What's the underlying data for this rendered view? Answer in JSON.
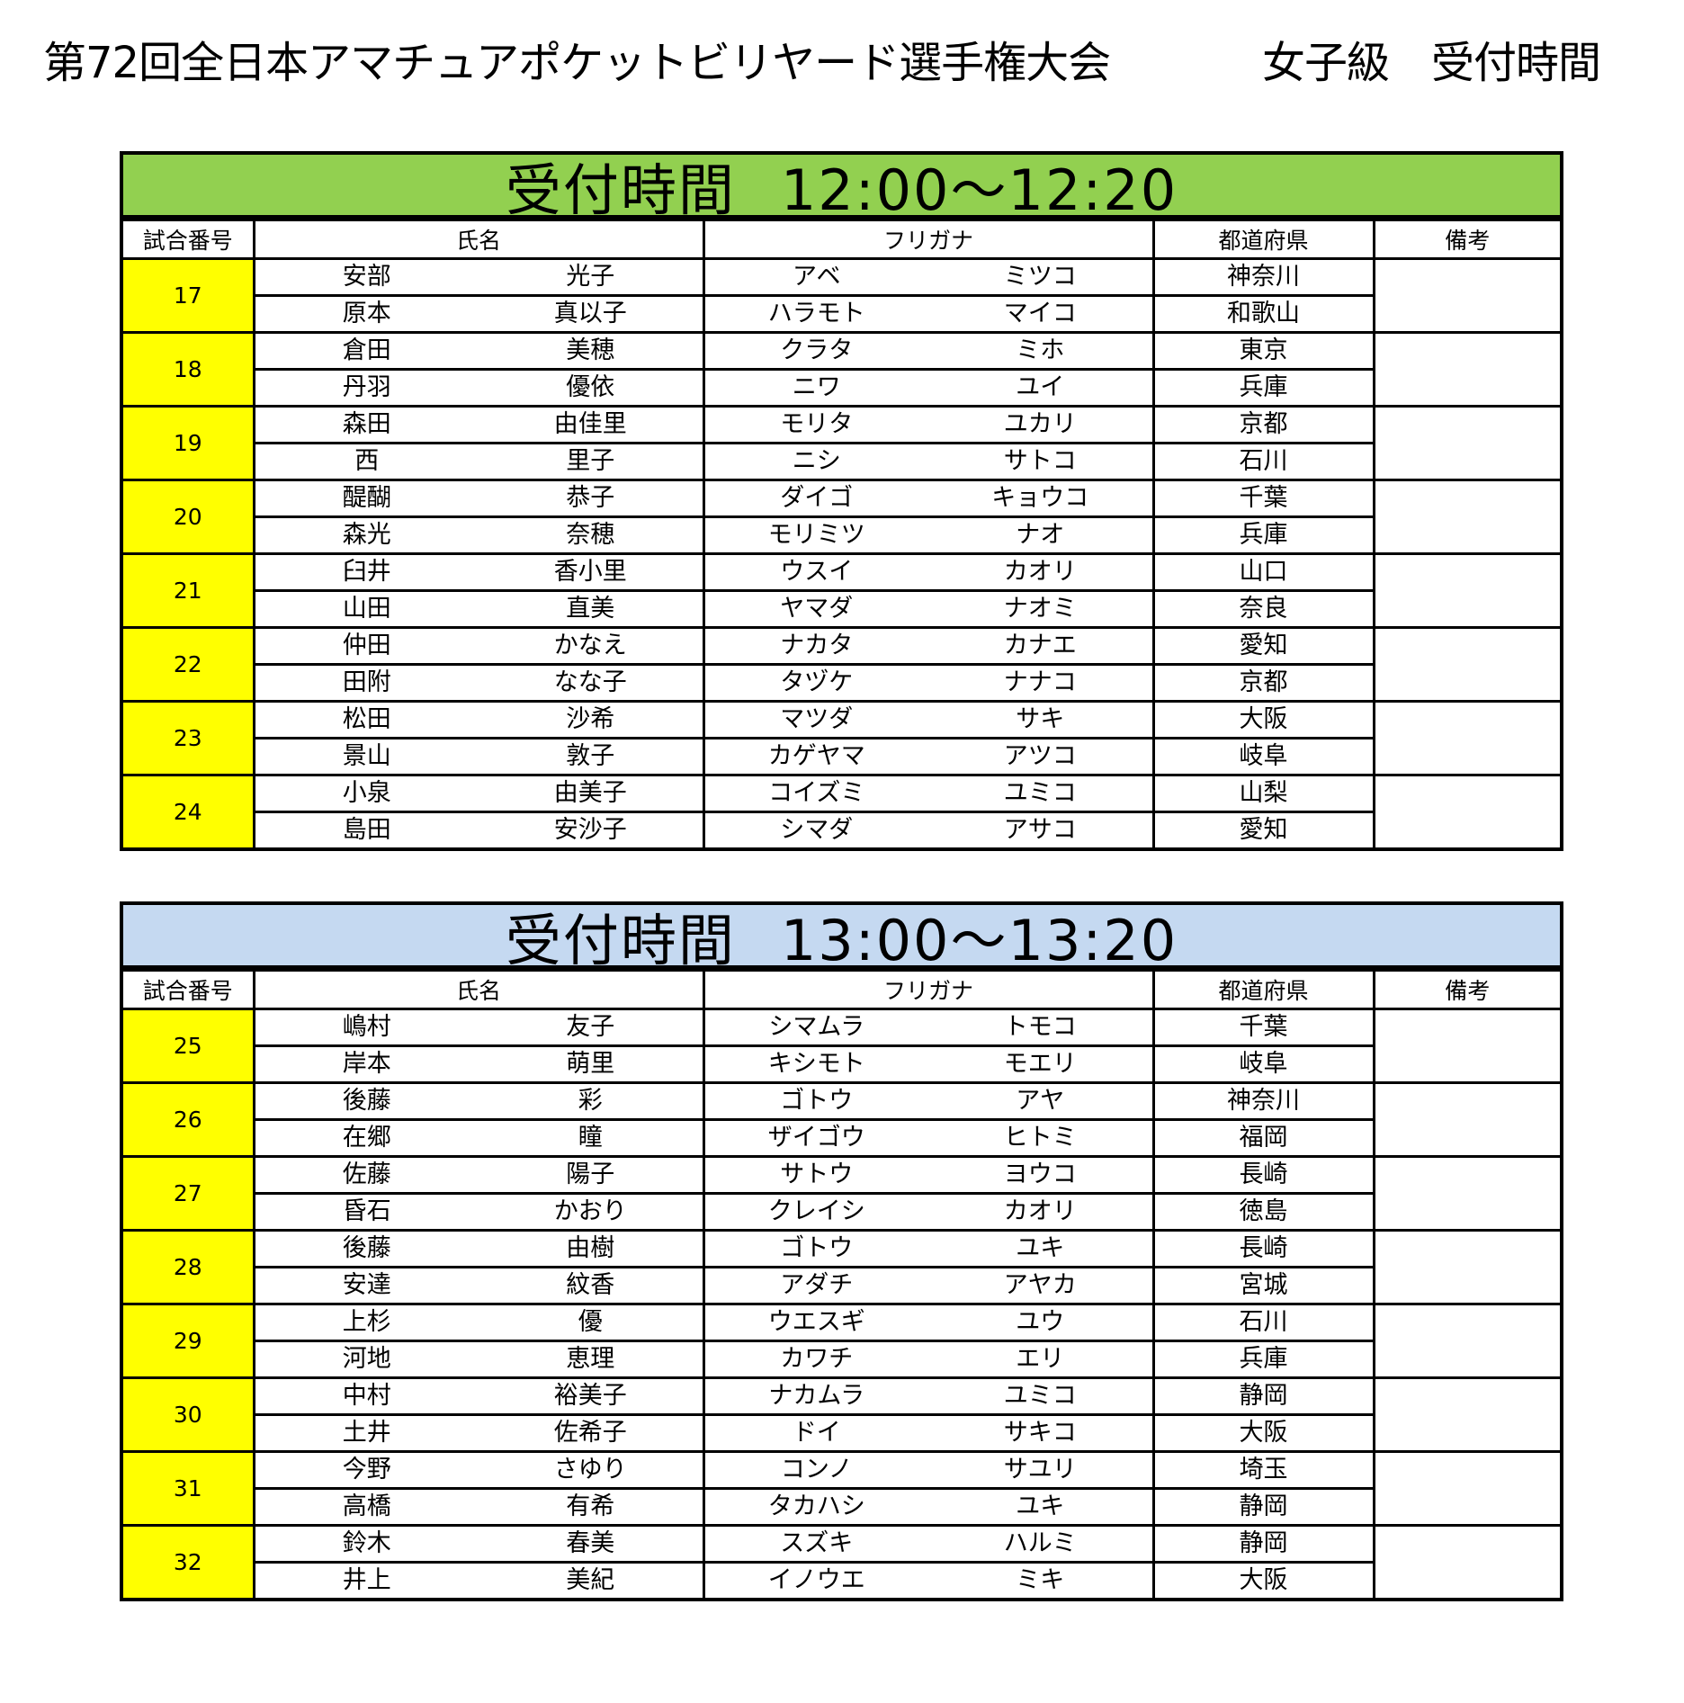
{
  "title": {
    "main": "第72回全日本アマチュアポケットビリヤード選手権大会",
    "sub": "女子級　受付時間"
  },
  "colors": {
    "band1": "#92d050",
    "band2": "#c5d9f1",
    "match_cell": "#ffff00"
  },
  "headers": {
    "match": "試合番号",
    "name": "氏名",
    "kana": "フリガナ",
    "pref": "都道府県",
    "note": "備考"
  },
  "sections": [
    {
      "label": "受付時間",
      "time": "12:00～12:20",
      "matches": [
        {
          "no": "17",
          "players": [
            [
              "安部",
              "光子",
              "アベ",
              "ミツコ",
              "神奈川"
            ],
            [
              "原本",
              "真以子",
              "ハラモト",
              "マイコ",
              "和歌山"
            ]
          ]
        },
        {
          "no": "18",
          "players": [
            [
              "倉田",
              "美穂",
              "クラタ",
              "ミホ",
              "東京"
            ],
            [
              "丹羽",
              "優依",
              "ニワ",
              "ユイ",
              "兵庫"
            ]
          ]
        },
        {
          "no": "19",
          "players": [
            [
              "森田",
              "由佳里",
              "モリタ",
              "ユカリ",
              "京都"
            ],
            [
              "西",
              "里子",
              "ニシ",
              "サトコ",
              "石川"
            ]
          ]
        },
        {
          "no": "20",
          "players": [
            [
              "醍醐",
              "恭子",
              "ダイゴ",
              "キョウコ",
              "千葉"
            ],
            [
              "森光",
              "奈穂",
              "モリミツ",
              "ナオ",
              "兵庫"
            ]
          ]
        },
        {
          "no": "21",
          "players": [
            [
              "臼井",
              "香小里",
              "ウスイ",
              "カオリ",
              "山口"
            ],
            [
              "山田",
              "直美",
              "ヤマダ",
              "ナオミ",
              "奈良"
            ]
          ]
        },
        {
          "no": "22",
          "players": [
            [
              "仲田",
              "かなえ",
              "ナカタ",
              "カナエ",
              "愛知"
            ],
            [
              "田附",
              "なな子",
              "タヅケ",
              "ナナコ",
              "京都"
            ]
          ]
        },
        {
          "no": "23",
          "players": [
            [
              "松田",
              "沙希",
              "マツダ",
              "サキ",
              "大阪"
            ],
            [
              "景山",
              "敦子",
              "カゲヤマ",
              "アツコ",
              "岐阜"
            ]
          ]
        },
        {
          "no": "24",
          "players": [
            [
              "小泉",
              "由美子",
              "コイズミ",
              "ユミコ",
              "山梨"
            ],
            [
              "島田",
              "安沙子",
              "シマダ",
              "アサコ",
              "愛知"
            ]
          ]
        }
      ]
    },
    {
      "label": "受付時間",
      "time": "13:00～13:20",
      "matches": [
        {
          "no": "25",
          "players": [
            [
              "嶋村",
              "友子",
              "シマムラ",
              "トモコ",
              "千葉"
            ],
            [
              "岸本",
              "萌里",
              "キシモト",
              "モエリ",
              "岐阜"
            ]
          ]
        },
        {
          "no": "26",
          "players": [
            [
              "後藤",
              "彩",
              "ゴトウ",
              "アヤ",
              "神奈川"
            ],
            [
              "在郷",
              "瞳",
              "ザイゴウ",
              "ヒトミ",
              "福岡"
            ]
          ]
        },
        {
          "no": "27",
          "players": [
            [
              "佐藤",
              "陽子",
              "サトウ",
              "ヨウコ",
              "長崎"
            ],
            [
              "昏石",
              "かおり",
              "クレイシ",
              "カオリ",
              "徳島"
            ]
          ]
        },
        {
          "no": "28",
          "players": [
            [
              "後藤",
              "由樹",
              "ゴトウ",
              "ユキ",
              "長崎"
            ],
            [
              "安達",
              "紋香",
              "アダチ",
              "アヤカ",
              "宮城"
            ]
          ]
        },
        {
          "no": "29",
          "players": [
            [
              "上杉",
              "優",
              "ウエスギ",
              "ユウ",
              "石川"
            ],
            [
              "河地",
              "恵理",
              "カワチ",
              "エリ",
              "兵庫"
            ]
          ]
        },
        {
          "no": "30",
          "players": [
            [
              "中村",
              "裕美子",
              "ナカムラ",
              "ユミコ",
              "静岡"
            ],
            [
              "土井",
              "佐希子",
              "ドイ",
              "サキコ",
              "大阪"
            ]
          ]
        },
        {
          "no": "31",
          "players": [
            [
              "今野",
              "さゆり",
              "コンノ",
              "サユリ",
              "埼玉"
            ],
            [
              "高橋",
              "有希",
              "タカハシ",
              "ユキ",
              "静岡"
            ]
          ]
        },
        {
          "no": "32",
          "players": [
            [
              "鈴木",
              "春美",
              "スズキ",
              "ハルミ",
              "静岡"
            ],
            [
              "井上",
              "美紀",
              "イノウエ",
              "ミキ",
              "大阪"
            ]
          ]
        }
      ]
    }
  ]
}
